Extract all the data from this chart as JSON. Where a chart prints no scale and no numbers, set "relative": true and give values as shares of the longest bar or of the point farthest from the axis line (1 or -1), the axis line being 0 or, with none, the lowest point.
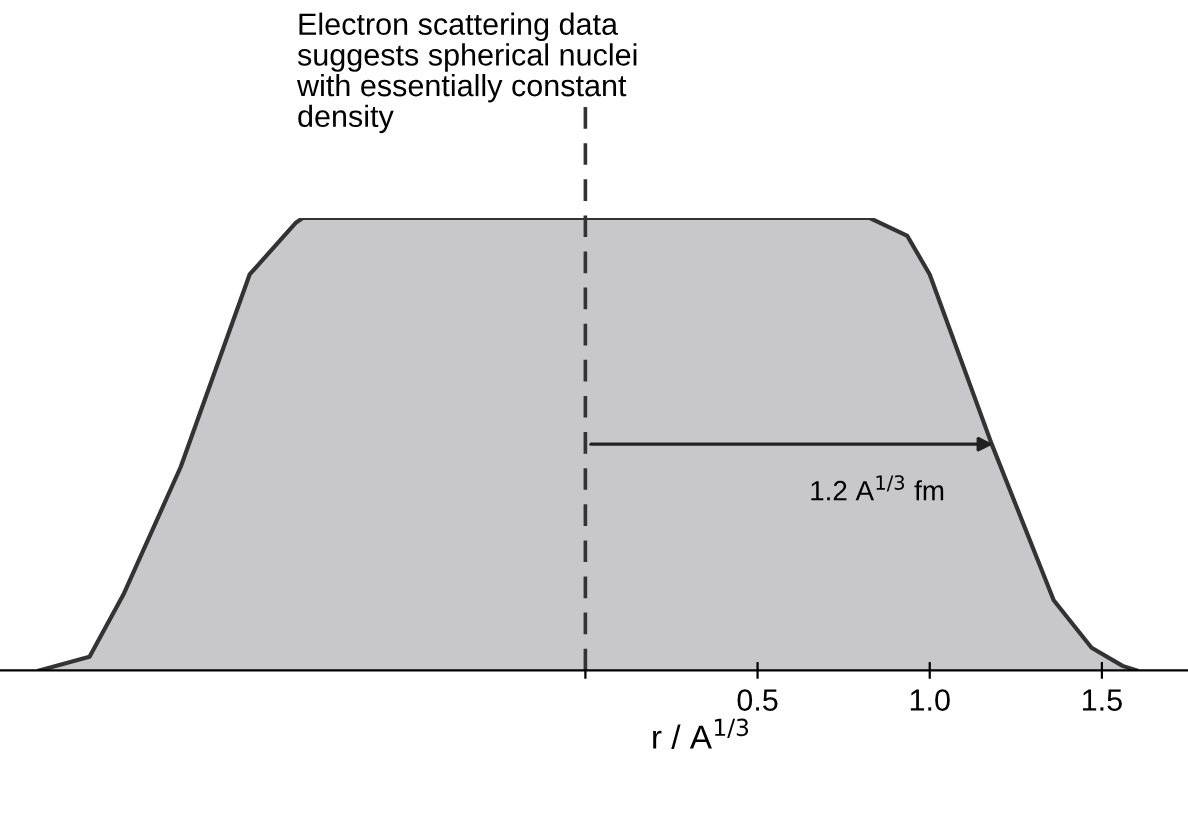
{
  "chart_data": {
    "type": "area",
    "relative": true,
    "xlabel": "r / A$^{1/3}$",
    "xlim": [
      -1.7,
      1.75
    ],
    "xticks": [
      {
        "value": 0,
        "label": null
      },
      0.5,
      {
        "value": 1,
        "label": "1.0"
      },
      1.5
    ],
    "x": [
      -1.586,
      -1.44,
      -1.34,
      -1.175,
      -0.975,
      -0.84,
      -0.82,
      0.825,
      0.935,
      1.0,
      1.18,
      1.36,
      1.47,
      1.56,
      1.6
    ],
    "series": [
      {
        "color": "#c8c8ca",
        "values": [
          0,
          0.03,
          0.17,
          0.45,
          0.875,
          0.99,
          1.0,
          1.0,
          0.96,
          0.875,
          0.5,
          0.155,
          0.05,
          0.01,
          0
        ]
      }
    ],
    "ref_lines": [
      {
        "axis": "x",
        "value": 0,
        "line_style": "dashed",
        "color": "#333333"
      }
    ],
    "annotations": [
      "Electron scattering data\nsuggests spherical nuclei\nwith essentially constant\ndensity",
      {
        "text": "1.2 A$^{1/3}$ fm",
        "x": 1.2,
        "y": 0.5
      }
    ]
  }
}
